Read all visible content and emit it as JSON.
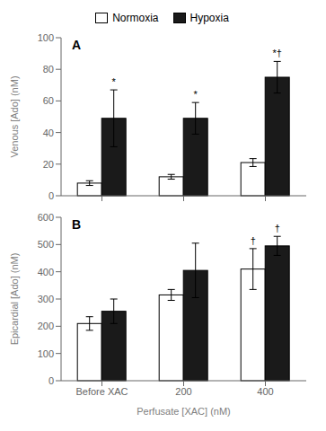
{
  "chart_data": [
    {
      "type": "bar",
      "title": "A",
      "ylabel": "Venous [Ado] (nM)",
      "categories": [
        null,
        null,
        null
      ],
      "ylim": [
        0,
        100
      ],
      "yticks": [
        0,
        20,
        40,
        60,
        80,
        100
      ],
      "legend": "top",
      "series": [
        {
          "name": "Normoxia",
          "color": "#ffffff",
          "values": [
            8,
            12,
            21
          ],
          "error": [
            1.5,
            1.5,
            2.5
          ]
        },
        {
          "name": "Hypoxia",
          "color": "#1a1a1a",
          "values": [
            49,
            49,
            75
          ],
          "error": [
            18,
            10,
            10
          ],
          "annotations": [
            "*",
            "*",
            "*†"
          ]
        }
      ]
    },
    {
      "type": "bar",
      "title": "B",
      "ylabel": "Epicardial [Ado] (nM)",
      "xlabel": "Perfusate [XAC] (nM)",
      "categories": [
        "Before XAC",
        "200",
        "400"
      ],
      "ylim": [
        0,
        600
      ],
      "yticks": [
        0,
        100,
        200,
        300,
        400,
        500,
        600
      ],
      "series": [
        {
          "name": "Normoxia",
          "color": "#ffffff",
          "values": [
            210,
            315,
            410
          ],
          "error": [
            25,
            20,
            75
          ],
          "annotations": [
            null,
            null,
            "†"
          ]
        },
        {
          "name": "Hypoxia",
          "color": "#1a1a1a",
          "values": [
            255,
            405,
            495
          ],
          "error": [
            45,
            100,
            35
          ],
          "annotations": [
            null,
            null,
            "†"
          ]
        }
      ]
    }
  ]
}
